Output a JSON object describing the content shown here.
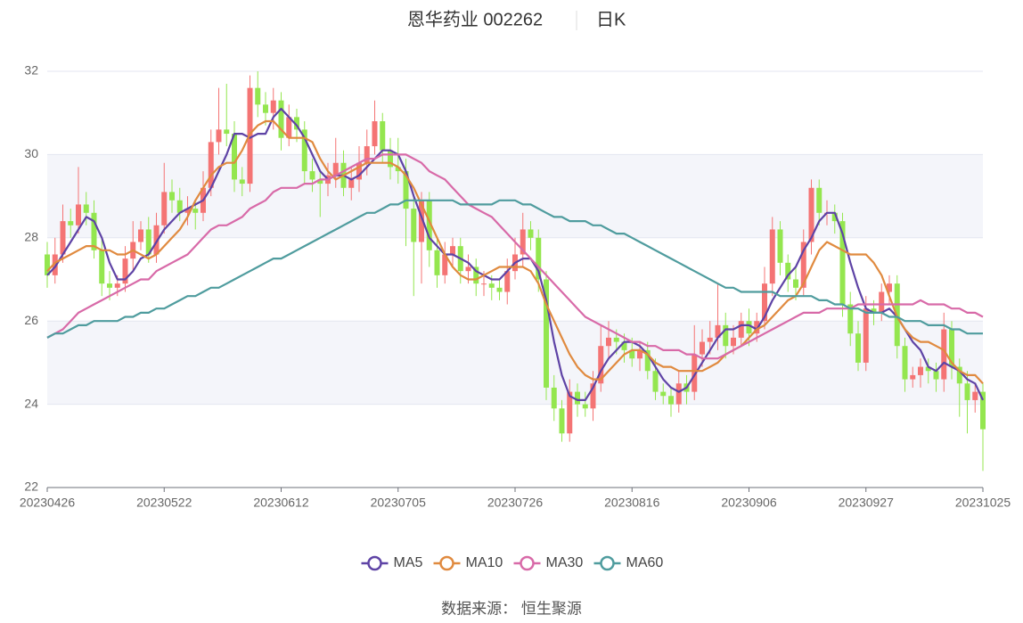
{
  "chart_data": {
    "type": "candlestick",
    "title": "恩华药业 002262",
    "subtitle": "日K",
    "source": "数据来源： 恒生聚源",
    "categories": [
      "20230426",
      null,
      null,
      null,
      null,
      null,
      null,
      null,
      null,
      null,
      null,
      null,
      null,
      null,
      null,
      "20230522",
      null,
      null,
      null,
      null,
      null,
      null,
      null,
      null,
      null,
      null,
      null,
      null,
      null,
      null,
      "20230612",
      null,
      null,
      null,
      null,
      null,
      null,
      null,
      null,
      null,
      null,
      null,
      null,
      null,
      null,
      "20230705",
      null,
      null,
      null,
      null,
      null,
      null,
      null,
      null,
      null,
      null,
      null,
      null,
      null,
      null,
      "20230726",
      null,
      null,
      null,
      null,
      null,
      null,
      null,
      null,
      null,
      null,
      null,
      null,
      null,
      null,
      "20230816",
      null,
      null,
      null,
      null,
      null,
      null,
      null,
      null,
      null,
      null,
      null,
      null,
      null,
      null,
      "20230906",
      null,
      null,
      null,
      null,
      null,
      null,
      null,
      null,
      null,
      null,
      null,
      null,
      null,
      null,
      "20230927",
      null,
      null,
      null,
      null,
      null,
      null,
      null,
      null,
      null,
      null,
      null,
      null,
      null,
      null,
      "20231025"
    ],
    "ylim": [
      22,
      32
    ],
    "yticks": [
      22,
      24,
      26,
      28,
      30,
      32
    ],
    "grid": true,
    "up_color": "#f47474",
    "down_color": "#94e64f",
    "candles": {
      "open": [
        27.6,
        27.1,
        27.6,
        28.4,
        28.3,
        28.8,
        28.6,
        27.7,
        26.9,
        26.8,
        26.9,
        27.5,
        27.9,
        28.2,
        27.6,
        28.3,
        29.1,
        28.9,
        28.6,
        28.7,
        28.6,
        29.2,
        30.3,
        30.6,
        30.5,
        29.4,
        29.3,
        31.6,
        31.2,
        31.0,
        31.3,
        30.4,
        30.9,
        30.6,
        29.6,
        29.4,
        29.3,
        29.5,
        29.8,
        29.2,
        29.4,
        29.8,
        30.2,
        30.8,
        30.1,
        29.7,
        29.6,
        28.7,
        27.9,
        28.9,
        27.7,
        27.1,
        27.6,
        27.8,
        27.2,
        27.3,
        26.9,
        26.9,
        26.8,
        26.7,
        27.2,
        27.6,
        28.2,
        28.0,
        27.0,
        24.4,
        23.9,
        23.3,
        24.3,
        24.0,
        23.9,
        24.5,
        25.4,
        25.6,
        25.5,
        25.3,
        25.1,
        25.3,
        24.8,
        24.3,
        24.2,
        24.0,
        24.5,
        24.3,
        25.2,
        25.5,
        25.6,
        25.9,
        25.4,
        25.6,
        26.0,
        25.7,
        26.0,
        26.9,
        28.2,
        27.4,
        27.0,
        26.8,
        27.9,
        29.2,
        28.6,
        28.6,
        28.4,
        26.4,
        25.7,
        25.0,
        26.3,
        26.2,
        26.7,
        26.9,
        25.4,
        24.6,
        24.7,
        24.9,
        24.8,
        24.6,
        25.8,
        24.9,
        24.5,
        24.1,
        24.3
      ],
      "high": [
        27.9,
        28.0,
        28.8,
        28.7,
        29.7,
        29.1,
        28.9,
        28.0,
        27.2,
        27.1,
        27.8,
        28.4,
        28.4,
        28.5,
        28.6,
        29.8,
        29.4,
        29.2,
        29.0,
        28.9,
        29.6,
        30.6,
        31.6,
        31.7,
        30.8,
        29.7,
        31.9,
        32.0,
        31.5,
        31.6,
        31.5,
        31.2,
        31.1,
        30.8,
        29.9,
        29.6,
        29.8,
        30.4,
        30.1,
        29.7,
        30.2,
        30.6,
        31.3,
        31.0,
        30.4,
        30.4,
        29.9,
        29.0,
        29.1,
        29.1,
        28.0,
        27.9,
        28.0,
        28.0,
        27.6,
        27.5,
        27.2,
        27.1,
        27.0,
        27.5,
        28.0,
        28.6,
        28.4,
        28.2,
        27.2,
        24.7,
        24.1,
        24.6,
        24.5,
        24.3,
        24.8,
        25.9,
        26.0,
        25.8,
        25.7,
        25.6,
        25.5,
        25.5,
        25.1,
        24.5,
        24.4,
        24.8,
        24.7,
        25.9,
        25.8,
        26.0,
        26.9,
        26.2,
        25.9,
        26.2,
        26.3,
        26.2,
        27.3,
        28.5,
        28.4,
        27.6,
        27.3,
        28.2,
        29.4,
        29.4,
        28.9,
        28.8,
        28.6,
        26.7,
        26.0,
        26.6,
        26.5,
        26.9,
        27.1,
        27.1,
        25.6,
        24.9,
        25.1,
        25.1,
        25.0,
        26.2,
        26.0,
        25.1,
        24.8,
        24.5,
        24.5
      ],
      "low": [
        26.8,
        26.9,
        27.4,
        28.0,
        28.1,
        28.3,
        27.5,
        26.6,
        26.5,
        26.6,
        26.7,
        27.2,
        27.7,
        27.4,
        27.4,
        28.1,
        28.6,
        28.4,
        28.3,
        28.2,
        28.4,
        29.0,
        30.0,
        30.2,
        29.1,
        29.0,
        29.1,
        30.9,
        30.7,
        30.6,
        30.1,
        30.2,
        30.3,
        29.3,
        29.1,
        28.5,
        29.0,
        29.2,
        29.0,
        28.9,
        29.1,
        29.5,
        30.0,
        29.8,
        29.4,
        29.3,
        27.8,
        26.6,
        26.9,
        27.3,
        26.8,
        26.9,
        27.3,
        26.9,
        26.9,
        26.6,
        26.6,
        26.5,
        26.5,
        26.4,
        27.0,
        27.3,
        27.7,
        26.7,
        24.1,
        23.6,
        23.1,
        23.1,
        23.7,
        23.7,
        23.6,
        24.3,
        25.1,
        25.2,
        25.0,
        24.9,
        24.8,
        24.6,
        24.1,
        24.0,
        23.7,
        23.8,
        24.0,
        24.1,
        24.9,
        25.2,
        25.3,
        25.1,
        25.2,
        25.4,
        25.4,
        25.5,
        25.8,
        26.6,
        27.1,
        26.7,
        26.5,
        26.6,
        27.6,
        28.3,
        28.3,
        28.1,
        26.1,
        25.4,
        24.8,
        24.8,
        25.9,
        26.0,
        26.4,
        25.1,
        24.3,
        24.4,
        24.4,
        24.5,
        24.3,
        24.3,
        24.6,
        23.7,
        23.3,
        23.8,
        22.4
      ],
      "close": [
        27.1,
        27.6,
        28.4,
        28.3,
        28.8,
        28.6,
        27.7,
        26.9,
        26.8,
        26.9,
        27.5,
        27.9,
        28.2,
        27.6,
        28.3,
        29.1,
        28.9,
        28.6,
        28.7,
        28.6,
        29.2,
        30.3,
        30.6,
        30.5,
        29.4,
        29.3,
        31.6,
        31.2,
        31.0,
        31.3,
        30.4,
        30.9,
        30.6,
        29.6,
        29.4,
        29.3,
        29.5,
        29.8,
        29.2,
        29.4,
        29.8,
        30.2,
        30.8,
        30.1,
        29.7,
        29.6,
        28.7,
        27.9,
        28.9,
        27.7,
        27.1,
        27.6,
        27.8,
        27.2,
        27.3,
        26.9,
        26.9,
        26.8,
        26.7,
        27.2,
        27.6,
        28.2,
        28.0,
        27.0,
        24.4,
        23.9,
        23.3,
        24.3,
        24.0,
        23.9,
        24.5,
        25.4,
        25.6,
        25.5,
        25.3,
        25.1,
        25.3,
        24.8,
        24.3,
        24.2,
        24.0,
        24.5,
        24.3,
        25.2,
        25.5,
        25.6,
        25.9,
        25.4,
        25.6,
        26.0,
        25.7,
        26.0,
        26.9,
        28.2,
        27.4,
        27.0,
        26.8,
        27.9,
        29.2,
        28.6,
        28.6,
        28.4,
        26.4,
        25.7,
        25.0,
        26.3,
        26.2,
        26.7,
        26.9,
        25.4,
        24.6,
        24.7,
        24.9,
        24.8,
        24.6,
        25.8,
        24.9,
        24.5,
        24.1,
        24.3,
        23.4
      ]
    },
    "series": [
      {
        "name": "MA5",
        "color": "#5e43a5",
        "values": [
          27.1,
          27.3,
          27.6,
          27.9,
          28.2,
          28.5,
          28.4,
          28.0,
          27.4,
          27.0,
          27.0,
          27.2,
          27.5,
          27.6,
          27.9,
          28.2,
          28.4,
          28.6,
          28.7,
          28.8,
          28.9,
          29.2,
          29.6,
          30.0,
          30.5,
          30.5,
          30.4,
          30.5,
          30.5,
          30.9,
          31.1,
          30.9,
          30.7,
          30.4,
          30.0,
          29.6,
          29.4,
          29.5,
          29.5,
          29.4,
          29.5,
          29.7,
          29.9,
          30.1,
          30.1,
          30.0,
          29.6,
          29.0,
          28.5,
          28.0,
          27.8,
          27.6,
          27.6,
          27.5,
          27.4,
          27.2,
          27.1,
          27.0,
          27.0,
          27.2,
          27.4,
          27.5,
          27.5,
          27.2,
          26.5,
          25.5,
          24.7,
          24.2,
          24.1,
          24.1,
          24.4,
          24.8,
          25.1,
          25.3,
          25.5,
          25.5,
          25.4,
          25.2,
          24.9,
          24.6,
          24.4,
          24.3,
          24.4,
          24.7,
          25.0,
          25.3,
          25.6,
          25.8,
          25.8,
          25.9,
          25.9,
          25.8,
          26.1,
          26.5,
          26.8,
          27.1,
          27.3,
          27.7,
          28.0,
          28.4,
          28.6,
          28.6,
          28.1,
          27.4,
          26.8,
          26.3,
          26.2,
          26.2,
          26.3,
          26.1,
          25.8,
          25.5,
          25.3,
          24.9,
          24.8,
          25.0,
          24.9,
          24.8,
          24.6,
          24.5,
          24.1
        ]
      },
      {
        "name": "MA10",
        "color": "#e08a3f",
        "values": [
          27.2,
          27.4,
          27.5,
          27.6,
          27.7,
          27.8,
          27.8,
          27.7,
          27.7,
          27.6,
          27.6,
          27.7,
          27.6,
          27.5,
          27.6,
          27.8,
          28.0,
          28.2,
          28.5,
          28.9,
          29.2,
          29.5,
          29.7,
          29.8,
          29.8,
          30.1,
          30.5,
          30.7,
          30.8,
          30.8,
          30.6,
          30.4,
          30.4,
          30.4,
          30.3,
          29.9,
          29.6,
          29.4,
          29.5,
          29.6,
          29.7,
          29.8,
          29.8,
          29.8,
          29.8,
          29.7,
          29.5,
          29.2,
          28.8,
          28.4,
          28.0,
          27.6,
          27.3,
          27.1,
          27.0,
          27.0,
          27.1,
          27.2,
          27.3,
          27.3,
          27.3,
          27.3,
          27.2,
          26.9,
          26.4,
          26.0,
          25.6,
          25.2,
          24.9,
          24.7,
          24.6,
          24.6,
          24.8,
          25.0,
          25.2,
          25.3,
          25.3,
          25.2,
          25.0,
          24.9,
          24.9,
          24.8,
          24.8,
          24.8,
          24.8,
          24.9,
          25.0,
          25.2,
          25.3,
          25.4,
          25.6,
          25.8,
          25.9,
          26.1,
          26.3,
          26.5,
          26.6,
          26.9,
          27.3,
          27.7,
          27.9,
          27.8,
          27.7,
          27.6,
          27.6,
          27.6,
          27.4,
          27.1,
          26.6,
          26.1,
          25.8,
          25.6,
          25.5,
          25.5,
          25.4,
          25.3,
          25.0,
          24.8,
          24.7,
          24.7,
          24.5
        ]
      },
      {
        "name": "MA30",
        "color": "#d86aa8",
        "values": [
          25.6,
          25.7,
          25.8,
          26.0,
          26.2,
          26.3,
          26.4,
          26.5,
          26.6,
          26.7,
          26.8,
          26.9,
          27.0,
          27.0,
          27.2,
          27.3,
          27.4,
          27.5,
          27.6,
          27.8,
          28.0,
          28.2,
          28.3,
          28.3,
          28.4,
          28.5,
          28.7,
          28.8,
          28.9,
          29.1,
          29.2,
          29.2,
          29.2,
          29.3,
          29.3,
          29.4,
          29.4,
          29.5,
          29.6,
          29.7,
          29.8,
          29.9,
          29.9,
          30.0,
          30.0,
          30.0,
          30.0,
          29.9,
          29.8,
          29.6,
          29.5,
          29.4,
          29.2,
          29.0,
          28.8,
          28.7,
          28.6,
          28.5,
          28.3,
          28.1,
          27.9,
          27.7,
          27.5,
          27.3,
          27.1,
          26.9,
          26.7,
          26.5,
          26.3,
          26.1,
          26.0,
          25.9,
          25.8,
          25.7,
          25.6,
          25.5,
          25.5,
          25.4,
          25.4,
          25.3,
          25.3,
          25.3,
          25.2,
          25.2,
          25.1,
          25.1,
          25.1,
          25.2,
          25.3,
          25.4,
          25.5,
          25.6,
          25.7,
          25.8,
          25.9,
          26.0,
          26.1,
          26.2,
          26.2,
          26.2,
          26.3,
          26.3,
          26.3,
          26.3,
          26.4,
          26.4,
          26.4,
          26.4,
          26.4,
          26.4,
          26.4,
          26.4,
          26.5,
          26.4,
          26.4,
          26.4,
          26.3,
          26.3,
          26.2,
          26.2,
          26.1
        ]
      },
      {
        "name": "MA60",
        "color": "#4f9c9e",
        "values": [
          25.6,
          25.7,
          25.7,
          25.8,
          25.9,
          25.9,
          26.0,
          26.0,
          26.0,
          26.0,
          26.1,
          26.1,
          26.2,
          26.2,
          26.3,
          26.3,
          26.4,
          26.5,
          26.6,
          26.6,
          26.7,
          26.8,
          26.8,
          26.9,
          27.0,
          27.1,
          27.2,
          27.3,
          27.4,
          27.5,
          27.5,
          27.6,
          27.7,
          27.8,
          27.9,
          28.0,
          28.1,
          28.2,
          28.3,
          28.4,
          28.5,
          28.6,
          28.6,
          28.7,
          28.8,
          28.8,
          28.9,
          28.9,
          28.9,
          28.9,
          28.9,
          28.9,
          28.9,
          28.8,
          28.8,
          28.8,
          28.8,
          28.8,
          28.9,
          28.9,
          28.9,
          28.8,
          28.8,
          28.7,
          28.6,
          28.5,
          28.5,
          28.4,
          28.4,
          28.4,
          28.3,
          28.3,
          28.2,
          28.1,
          28.1,
          28.0,
          27.9,
          27.8,
          27.7,
          27.6,
          27.5,
          27.4,
          27.3,
          27.2,
          27.1,
          27.0,
          26.9,
          26.8,
          26.8,
          26.7,
          26.7,
          26.7,
          26.7,
          26.7,
          26.6,
          26.6,
          26.6,
          26.6,
          26.6,
          26.5,
          26.5,
          26.4,
          26.4,
          26.3,
          26.3,
          26.2,
          26.2,
          26.2,
          26.1,
          26.1,
          26.0,
          26.0,
          26.0,
          25.9,
          25.9,
          25.9,
          25.8,
          25.8,
          25.7,
          25.7,
          25.7
        ]
      }
    ]
  }
}
